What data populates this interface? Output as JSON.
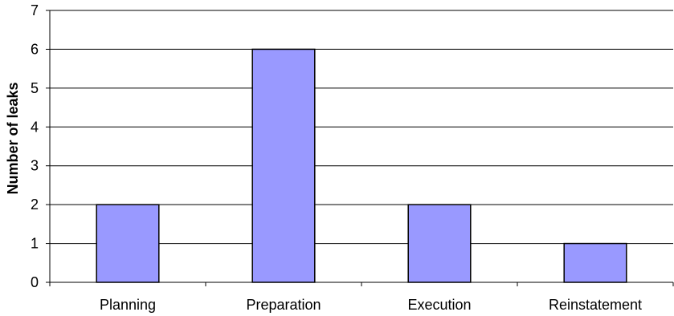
{
  "chart_data": {
    "type": "bar",
    "categories": [
      "Planning",
      "Preparation",
      "Execution",
      "Reinstatement"
    ],
    "values": [
      2,
      6,
      2,
      1
    ],
    "title": "",
    "xlabel": "",
    "ylabel": "Number of leaks",
    "ylim": [
      0,
      7
    ],
    "yticks": [
      0,
      1,
      2,
      3,
      4,
      5,
      6,
      7
    ],
    "grid": true,
    "legend": "none",
    "bar_color": "#9999ff",
    "bar_edge_color": "#000000",
    "gridline_color": "#000000"
  }
}
